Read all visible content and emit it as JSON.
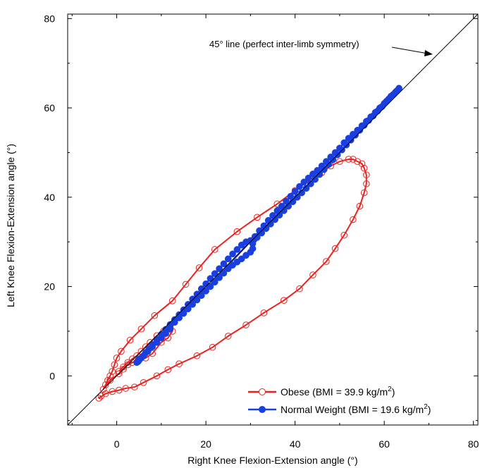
{
  "chart_data": {
    "type": "scatter",
    "title": "",
    "xlabel": "Right Knee Flexion-Extension angle (°)",
    "ylabel": "Left Knee Flexion-Extension angle (°)",
    "xlim": [
      -11,
      81
    ],
    "ylim": [
      -11,
      81
    ],
    "xticks": [
      0,
      20,
      40,
      60,
      80
    ],
    "yticks": [
      0,
      20,
      40,
      60,
      80
    ],
    "tick_labels_x": [
      "0",
      "20",
      "40",
      "60",
      "80"
    ],
    "tick_labels_y": [
      "0",
      "20",
      "40",
      "60",
      "80"
    ],
    "grid": false,
    "legend_position": "bottom-right",
    "reference_line": {
      "label": "45° line (perfect inter-limb symmetry)",
      "from": [
        -11,
        -11
      ],
      "to": [
        81,
        81
      ]
    },
    "series": [
      {
        "key": "obese",
        "legend_text": "Obese (BMI = 39.9 kg/m",
        "legend_sup": "2",
        "legend_close": ")",
        "color": "#e8231f",
        "marker": "open-circle",
        "points": [
          [
            -3.5,
            -4.5
          ],
          [
            -4,
            -5
          ],
          [
            -2.5,
            -4
          ],
          [
            -1,
            -3.5
          ],
          [
            0.5,
            -3.2
          ],
          [
            2,
            -2.8
          ],
          [
            4,
            -2.5
          ],
          [
            6,
            -1.5
          ],
          [
            9,
            0
          ],
          [
            11.5,
            1.4
          ],
          [
            14,
            2.7
          ],
          [
            18,
            4.5
          ],
          [
            21.5,
            6.4
          ],
          [
            25,
            8.9
          ],
          [
            29,
            11.4
          ],
          [
            33,
            14.1
          ],
          [
            37.5,
            16.9
          ],
          [
            41,
            19.5
          ],
          [
            44,
            22.6
          ],
          [
            47,
            25.6
          ],
          [
            49,
            28.5
          ],
          [
            51,
            31.5
          ],
          [
            53,
            35
          ],
          [
            54.5,
            38
          ],
          [
            55.5,
            41
          ],
          [
            56,
            43
          ],
          [
            56,
            45
          ],
          [
            55.5,
            46.5
          ],
          [
            55,
            47.5
          ],
          [
            54,
            48
          ],
          [
            53,
            48.5
          ],
          [
            52,
            48.5
          ],
          [
            50,
            48
          ],
          [
            48,
            47
          ],
          [
            46,
            45.5
          ],
          [
            43.5,
            44
          ],
          [
            40,
            41.5
          ],
          [
            36,
            38.5
          ],
          [
            31.5,
            35.5
          ],
          [
            27,
            32.3
          ],
          [
            22,
            28.3
          ],
          [
            18.5,
            24.2
          ],
          [
            15.5,
            20.5
          ],
          [
            12.5,
            16.8
          ],
          [
            8.5,
            13.5
          ],
          [
            5.5,
            10.5
          ],
          [
            3,
            8
          ],
          [
            1,
            5.5
          ],
          [
            0,
            4
          ],
          [
            -0.5,
            2.5
          ],
          [
            -1,
            1
          ],
          [
            -1.5,
            0
          ],
          [
            -2,
            -1
          ],
          [
            -2.5,
            -2
          ],
          [
            -3,
            -3
          ],
          [
            -1.5,
            -1
          ],
          [
            0.5,
            0.5
          ],
          [
            1.5,
            1.5
          ],
          [
            2.5,
            2.5
          ],
          [
            3.5,
            3
          ],
          [
            5,
            3.5
          ],
          [
            6.5,
            4
          ],
          [
            8,
            5
          ],
          [
            10,
            7.5
          ],
          [
            11.5,
            8.5
          ],
          [
            12.5,
            10
          ],
          [
            12,
            11
          ],
          [
            10.5,
            10
          ],
          [
            9,
            9
          ],
          [
            7.5,
            7.5
          ],
          [
            6.5,
            6.5
          ],
          [
            5.5,
            5.5
          ],
          [
            4.5,
            4.5
          ],
          [
            3.5,
            3.8
          ],
          [
            2.5,
            3
          ],
          [
            1.5,
            2
          ],
          [
            0.5,
            1
          ]
        ]
      },
      {
        "key": "normal",
        "legend_text": "Normal Weight (BMI = 19.6 kg/m",
        "legend_sup": "2",
        "legend_close": ")",
        "color": "#1a3fe0",
        "marker": "filled-circle",
        "points": [
          [
            4.5,
            3
          ],
          [
            5,
            3.5
          ],
          [
            5.5,
            4
          ],
          [
            6,
            4.5
          ],
          [
            6.5,
            5.2
          ],
          [
            7.2,
            6
          ],
          [
            8,
            7
          ],
          [
            9,
            8.2
          ],
          [
            10,
            9.3
          ],
          [
            11,
            10.4
          ],
          [
            12,
            11.5
          ],
          [
            13,
            12.6
          ],
          [
            14,
            13.7
          ],
          [
            15,
            14.8
          ],
          [
            16,
            16
          ],
          [
            17,
            17.2
          ],
          [
            18,
            18.3
          ],
          [
            19,
            19.5
          ],
          [
            20,
            20.6
          ],
          [
            21,
            21.8
          ],
          [
            22,
            22.9
          ],
          [
            23,
            24
          ],
          [
            24,
            25.1
          ],
          [
            25,
            26.2
          ],
          [
            26,
            27.3
          ],
          [
            27,
            28.3
          ],
          [
            28,
            29.3
          ],
          [
            29,
            30
          ],
          [
            30,
            30.3
          ],
          [
            30.5,
            29.6
          ],
          [
            30.5,
            28.5
          ],
          [
            30,
            27.7
          ],
          [
            29,
            27
          ],
          [
            28,
            26.2
          ],
          [
            27,
            25.5
          ],
          [
            26,
            24.8
          ],
          [
            25,
            24
          ],
          [
            24,
            23
          ],
          [
            23,
            22
          ],
          [
            22,
            21
          ],
          [
            21,
            20
          ],
          [
            20,
            19
          ],
          [
            19,
            18
          ],
          [
            18,
            17
          ],
          [
            17,
            16
          ],
          [
            16,
            15
          ],
          [
            15,
            14
          ],
          [
            14,
            13
          ],
          [
            13,
            12
          ],
          [
            12,
            10.5
          ],
          [
            11,
            9.5
          ],
          [
            10,
            8.5
          ],
          [
            9,
            7.5
          ],
          [
            8,
            6.5
          ],
          [
            7,
            5.5
          ],
          [
            6,
            4.5
          ],
          [
            5,
            3.8
          ],
          [
            4.8,
            3.2
          ],
          [
            31,
            31.2
          ],
          [
            32,
            32.5
          ],
          [
            33,
            33.6
          ],
          [
            34,
            34.8
          ],
          [
            35,
            35.9
          ],
          [
            36,
            37
          ],
          [
            37,
            38
          ],
          [
            38,
            39.1
          ],
          [
            39,
            40.2
          ],
          [
            40,
            41.3
          ],
          [
            41,
            42.4
          ],
          [
            42,
            43.4
          ],
          [
            43,
            44.3
          ],
          [
            44,
            45.2
          ],
          [
            45,
            46
          ],
          [
            46,
            47
          ],
          [
            47,
            48
          ],
          [
            48,
            49
          ],
          [
            49,
            50
          ],
          [
            50,
            51
          ],
          [
            51,
            52.2
          ],
          [
            52,
            53.2
          ],
          [
            53,
            54.1
          ],
          [
            54,
            55
          ],
          [
            55,
            56
          ],
          [
            56,
            57
          ],
          [
            57,
            58
          ],
          [
            58,
            59
          ],
          [
            59,
            60
          ],
          [
            60,
            61
          ],
          [
            61,
            62
          ],
          [
            62,
            63
          ],
          [
            62.8,
            63.8
          ],
          [
            63.3,
            64.4
          ],
          [
            62.5,
            63.5
          ],
          [
            61.5,
            62.6
          ],
          [
            60.5,
            61.5
          ],
          [
            59.5,
            60.3
          ],
          [
            58.5,
            59.3
          ],
          [
            57.5,
            58.2
          ],
          [
            56.5,
            57.2
          ],
          [
            55.5,
            56.1
          ],
          [
            54.5,
            55
          ],
          [
            53.5,
            53.9
          ],
          [
            52.5,
            52.8
          ],
          [
            51.5,
            51.7
          ],
          [
            50.5,
            50.6
          ],
          [
            49.5,
            49.5
          ],
          [
            48.5,
            48.4
          ],
          [
            47.5,
            47.3
          ],
          [
            46.5,
            46.2
          ],
          [
            45.5,
            45.1
          ],
          [
            44.5,
            44
          ],
          [
            43.5,
            43
          ],
          [
            42.5,
            42
          ],
          [
            41.5,
            41
          ],
          [
            40.5,
            40
          ],
          [
            39.5,
            39
          ],
          [
            38.5,
            38
          ],
          [
            37.5,
            37
          ],
          [
            36.5,
            36
          ],
          [
            35.5,
            35
          ],
          [
            34.5,
            34
          ],
          [
            33.5,
            33
          ],
          [
            32.5,
            32
          ],
          [
            31.5,
            31
          ],
          [
            30.8,
            30.5
          ]
        ]
      }
    ]
  }
}
